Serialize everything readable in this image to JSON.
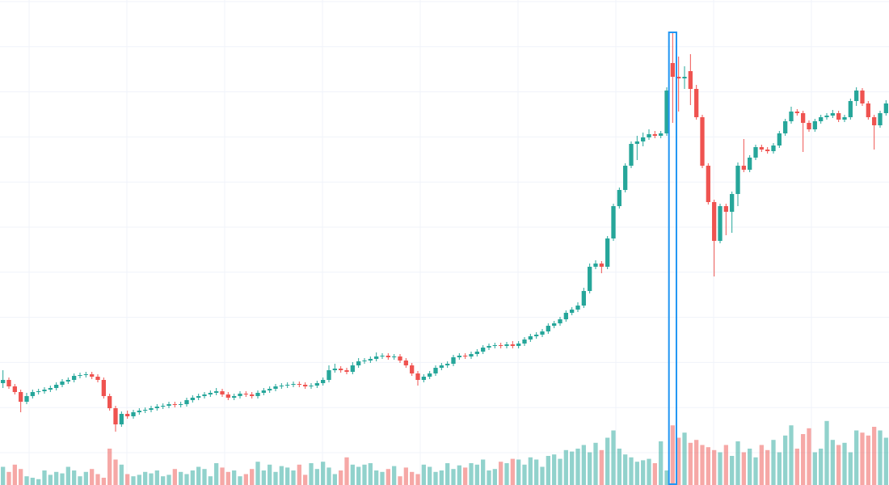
{
  "chart_data": {
    "type": "candlestick",
    "open": [
      126,
      130,
      122,
      115,
      103,
      110,
      115,
      116,
      118,
      120,
      124,
      128,
      130,
      135,
      136,
      137,
      134,
      130,
      110,
      95,
      75,
      88,
      85,
      90,
      92,
      93,
      95,
      97,
      98,
      100,
      99,
      100,
      105,
      108,
      110,
      112,
      114,
      116,
      112,
      108,
      110,
      113,
      112,
      110,
      114,
      117,
      119,
      122,
      123,
      124,
      125,
      124,
      122,
      123,
      126,
      130,
      142,
      144,
      142,
      140,
      148,
      153,
      154,
      156,
      159,
      160,
      158,
      159,
      154,
      148,
      138,
      130,
      134,
      138,
      145,
      148,
      150,
      158,
      160,
      159,
      162,
      165,
      170,
      172,
      173,
      172,
      174,
      172,
      175,
      180,
      184,
      186,
      190,
      197,
      200,
      205,
      213,
      217,
      222,
      240,
      270,
      274,
      270,
      305,
      345,
      365,
      395,
      422,
      425,
      430,
      434,
      432,
      435,
      522,
      505,
      503,
      512,
      490,
      455,
      395,
      350,
      302,
      345,
      338,
      360,
      395,
      390,
      405,
      418,
      415,
      413,
      420,
      435,
      450,
      462,
      460,
      448,
      440,
      450,
      455,
      457,
      460,
      452,
      455,
      475,
      488,
      472,
      455,
      445,
      460
    ],
    "high": [
      142,
      133,
      125,
      118,
      114,
      118,
      119,
      121,
      123,
      127,
      131,
      133,
      138,
      139,
      140,
      140,
      137,
      133,
      113,
      98,
      91,
      92,
      93,
      95,
      96,
      98,
      100,
      101,
      103,
      103,
      103,
      108,
      111,
      113,
      115,
      117,
      120,
      119,
      115,
      113,
      116,
      116,
      115,
      117,
      120,
      122,
      125,
      126,
      127,
      128,
      128,
      127,
      126,
      129,
      133,
      148,
      150,
      147,
      145,
      152,
      157,
      157,
      159,
      164,
      163,
      163,
      162,
      162,
      157,
      151,
      141,
      137,
      141,
      148,
      151,
      153,
      161,
      163,
      163,
      165,
      168,
      173,
      175,
      176,
      176,
      177,
      178,
      178,
      183,
      187,
      189,
      193,
      200,
      203,
      208,
      216,
      220,
      226,
      244,
      274,
      278,
      277,
      308,
      348,
      368,
      398,
      425,
      432,
      436,
      440,
      438,
      438,
      492,
      560,
      530,
      518,
      533,
      495,
      458,
      398,
      353,
      348,
      348,
      363,
      399,
      428,
      408,
      421,
      421,
      418,
      423,
      438,
      453,
      468,
      465,
      463,
      451,
      453,
      458,
      460,
      464,
      463,
      458,
      478,
      492,
      491,
      475,
      458,
      463,
      476
    ],
    "low": [
      120,
      119,
      112,
      90,
      100,
      107,
      112,
      113,
      115,
      117,
      121,
      125,
      127,
      132,
      133,
      131,
      127,
      107,
      92,
      66,
      72,
      82,
      82,
      87,
      89,
      90,
      92,
      94,
      95,
      96,
      96,
      97,
      102,
      105,
      107,
      109,
      111,
      109,
      105,
      105,
      107,
      109,
      107,
      107,
      111,
      114,
      116,
      119,
      120,
      121,
      121,
      119,
      119,
      120,
      123,
      127,
      139,
      139,
      137,
      137,
      145,
      150,
      151,
      153,
      156,
      155,
      155,
      151,
      145,
      135,
      123,
      127,
      131,
      135,
      142,
      145,
      147,
      155,
      156,
      156,
      159,
      162,
      167,
      169,
      169,
      169,
      169,
      169,
      172,
      177,
      181,
      183,
      187,
      194,
      197,
      202,
      210,
      214,
      219,
      237,
      267,
      262,
      267,
      302,
      342,
      362,
      392,
      402,
      419,
      427,
      429,
      429,
      432,
      448,
      462,
      490,
      470,
      452,
      392,
      347,
      258,
      299,
      309,
      312,
      345,
      387,
      387,
      402,
      412,
      410,
      410,
      417,
      432,
      447,
      457,
      412,
      437,
      437,
      447,
      452,
      454,
      449,
      449,
      452,
      469,
      469,
      452,
      415,
      442,
      457
    ],
    "close": [
      130,
      122,
      115,
      103,
      110,
      115,
      116,
      118,
      120,
      124,
      128,
      130,
      135,
      136,
      137,
      134,
      130,
      110,
      95,
      75,
      88,
      85,
      90,
      92,
      93,
      95,
      97,
      98,
      100,
      99,
      100,
      105,
      108,
      110,
      112,
      114,
      116,
      112,
      108,
      110,
      113,
      112,
      110,
      114,
      117,
      119,
      122,
      123,
      124,
      125,
      124,
      122,
      123,
      126,
      130,
      142,
      144,
      142,
      140,
      148,
      153,
      154,
      156,
      159,
      160,
      158,
      159,
      154,
      148,
      138,
      130,
      134,
      138,
      145,
      148,
      150,
      158,
      160,
      159,
      162,
      165,
      170,
      172,
      173,
      172,
      174,
      172,
      175,
      180,
      184,
      186,
      190,
      197,
      200,
      205,
      213,
      217,
      222,
      240,
      270,
      274,
      270,
      305,
      345,
      365,
      395,
      422,
      425,
      430,
      434,
      432,
      435,
      488,
      505,
      503,
      505,
      490,
      455,
      395,
      350,
      302,
      345,
      338,
      360,
      395,
      390,
      405,
      418,
      415,
      413,
      420,
      435,
      450,
      462,
      460,
      448,
      440,
      450,
      455,
      457,
      460,
      452,
      455,
      475,
      488,
      472,
      455,
      445,
      460,
      472
    ],
    "volume": [
      25,
      18,
      28,
      22,
      12,
      10,
      8,
      20,
      14,
      18,
      16,
      25,
      20,
      12,
      18,
      22,
      15,
      10,
      50,
      35,
      28,
      15,
      12,
      14,
      18,
      16,
      20,
      12,
      14,
      22,
      18,
      15,
      20,
      25,
      22,
      12,
      30,
      24,
      18,
      20,
      12,
      15,
      22,
      32,
      20,
      28,
      18,
      26,
      24,
      20,
      28,
      14,
      30,
      22,
      32,
      24,
      15,
      20,
      38,
      28,
      25,
      28,
      30,
      20,
      18,
      22,
      26,
      12,
      24,
      18,
      15,
      28,
      25,
      18,
      20,
      30,
      22,
      27,
      24,
      30,
      28,
      35,
      20,
      22,
      32,
      30,
      36,
      35,
      28,
      38,
      35,
      25,
      40,
      42,
      36,
      48,
      46,
      50,
      55,
      45,
      58,
      48,
      65,
      75,
      50,
      42,
      38,
      32,
      34,
      36,
      30,
      60,
      20,
      82,
      65,
      72,
      58,
      62,
      55,
      52,
      48,
      45,
      55,
      40,
      60,
      45,
      50,
      38,
      55,
      48,
      62,
      45,
      68,
      82,
      50,
      70,
      78,
      45,
      50,
      88,
      62,
      55,
      58,
      45,
      75,
      72,
      68,
      80,
      75,
      65
    ],
    "ylim": [
      0,
      600
    ],
    "volume_ylim": [
      0,
      100
    ],
    "up_color": "#26a69a",
    "down_color": "#ef5350",
    "highlight_color": "#2196f3",
    "grid": true,
    "highlight_index": 113
  }
}
